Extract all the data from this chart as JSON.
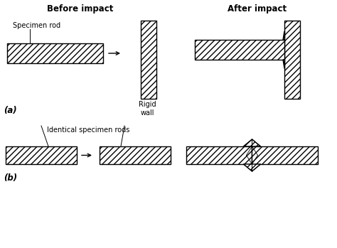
{
  "title_before": "Before impact",
  "title_after": "After impact",
  "label_specimen": "Specimen rod",
  "label_rigid": "Rigid\nwall",
  "label_identical": "Identical specimen rods",
  "label_a": "(a)",
  "label_b": "(b)",
  "hatch_pattern": "////",
  "bg_color": "#ffffff",
  "line_color": "#000000",
  "hatch_color": "#000000",
  "face_color": "#ffffff"
}
